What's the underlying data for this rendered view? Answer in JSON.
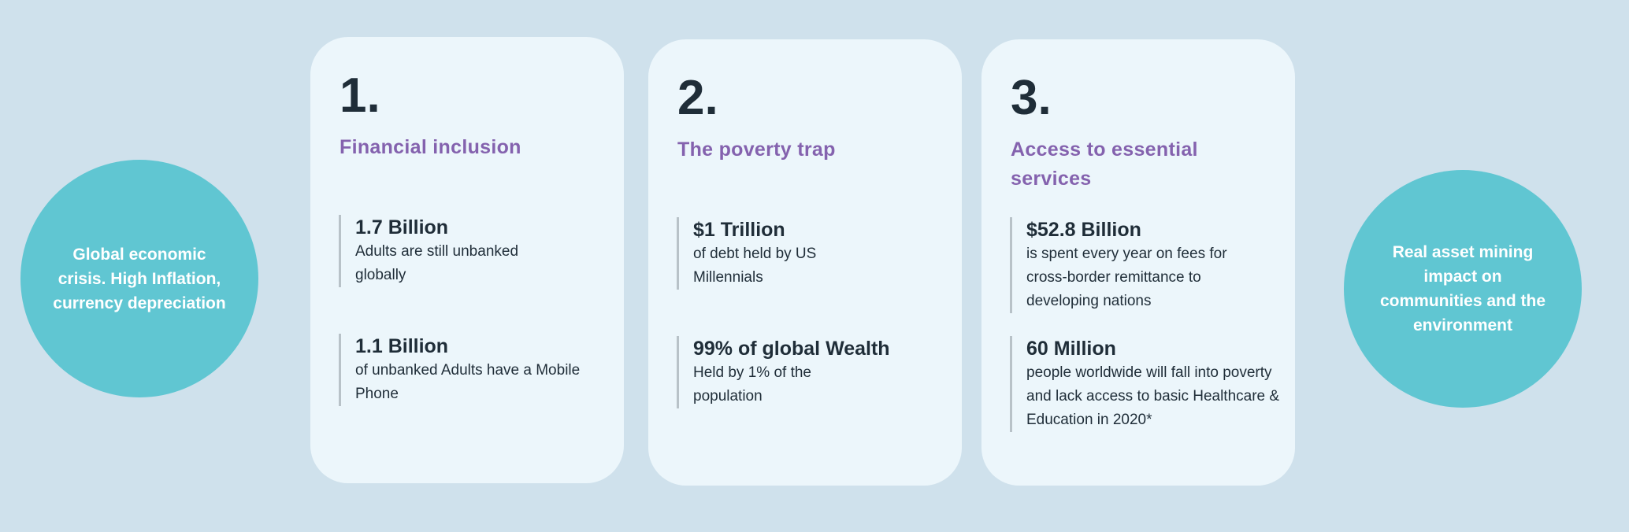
{
  "colors": {
    "background": "#cfe1ec",
    "card": "#ecf6fb",
    "circle": "#60c6d2",
    "accent": "#8462ae",
    "text": "#1f2d38"
  },
  "left_circle": {
    "text": "Global economic crisis. High Inflation, currency depreciation"
  },
  "right_circle": {
    "text": "Real asset  mining impact on communities and the environment"
  },
  "cards": [
    {
      "number": "1.",
      "title": "Financial inclusion",
      "stats": [
        {
          "headline": "1.7 Billion",
          "text": "Adults are still unbanked globally"
        },
        {
          "headline": "1.1 Billion",
          "text": "of unbanked Adults have a Mobile Phone"
        }
      ]
    },
    {
      "number": "2.",
      "title": "The poverty trap",
      "stats": [
        {
          "headline": "$1 Trillion",
          "text": "of debt held by US Millennials"
        },
        {
          "headline": "99% of global Wealth",
          "text": "Held by 1% of the population"
        }
      ]
    },
    {
      "number": "3.",
      "title": "Access to essential services",
      "stats": [
        {
          "headline": "$52.8 Billion",
          "text": "is spent every year on fees for cross-border remittance to developing nations"
        },
        {
          "headline": "60 Million",
          "text": "people worldwide will fall into poverty and lack access to basic Healthcare & Education in 2020*"
        }
      ]
    }
  ]
}
